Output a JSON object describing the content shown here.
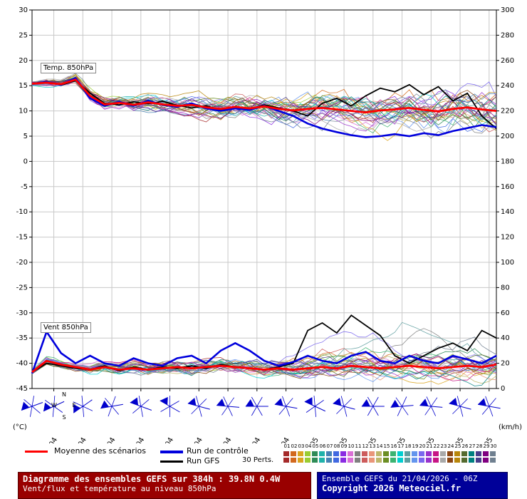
{
  "chart_data": {
    "type": "line",
    "title": "Diagramme des ensembles GEFS sur 384h : 39.8N 0.4W",
    "subtitle": "Vent/flux et température au niveau 850hPa",
    "temp_label": "Temp. 850hPa",
    "wind_label": "Vent 850hPa",
    "left_axis": {
      "unit": "(°C)",
      "min": -45,
      "max": 30,
      "step": 5
    },
    "right_axis": {
      "unit": "(km/h)",
      "min": 0,
      "max": 300,
      "step": 20
    },
    "x_labels": [
      "22/04",
      "23/04",
      "24/04",
      "25/04",
      "26/04",
      "27/04",
      "28/04",
      "29/04",
      "30/04",
      "01/05",
      "02/05",
      "03/05",
      "04/05",
      "05/05",
      "06/05",
      "07/05"
    ],
    "forecast_hours_total": 384,
    "hours": [
      0,
      12,
      24,
      36,
      48,
      60,
      72,
      84,
      96,
      108,
      120,
      132,
      144,
      156,
      168,
      180,
      192,
      204,
      216,
      228,
      240,
      252,
      264,
      276,
      288,
      300,
      312,
      324,
      336,
      348,
      360,
      372,
      384
    ],
    "series": {
      "mean_temp": {
        "name": "Moyenne des scénarios (temp)",
        "color": "#ff0000",
        "values": [
          15.4,
          15.6,
          15.3,
          16.2,
          13.0,
          11.3,
          11.6,
          11.2,
          11.7,
          11.3,
          11.0,
          11.2,
          10.7,
          10.4,
          10.8,
          10.5,
          10.9,
          10.4,
          10.1,
          10.4,
          10.6,
          10.3,
          10.0,
          9.7,
          10.1,
          10.3,
          10.6,
          10.2,
          9.9,
          10.4,
          10.7,
          10.3,
          10.0
        ]
      },
      "control_temp": {
        "name": "Run de contrôle (temp)",
        "color": "#0000dd",
        "values": [
          15.4,
          15.7,
          15.2,
          16.5,
          12.5,
          11.0,
          11.8,
          11.0,
          12.0,
          11.2,
          10.8,
          11.5,
          10.5,
          10.0,
          10.5,
          10.2,
          11.0,
          10.0,
          9.0,
          7.5,
          6.5,
          5.8,
          5.2,
          4.8,
          5.0,
          5.4,
          5.0,
          5.6,
          5.2,
          6.0,
          6.6,
          7.2,
          6.8
        ]
      },
      "gfs_temp": {
        "name": "Run GFS (temp)",
        "color": "#000000",
        "values": [
          15.4,
          15.8,
          15.1,
          16.0,
          13.5,
          11.5,
          11.2,
          11.8,
          11.4,
          11.9,
          11.1,
          10.6,
          11.0,
          10.2,
          10.9,
          10.3,
          11.2,
          10.6,
          10.0,
          9.0,
          11.5,
          12.5,
          11.0,
          13.0,
          14.5,
          13.8,
          15.2,
          13.2,
          14.8,
          12.0,
          13.5,
          9.0,
          6.5
        ]
      },
      "mean_wind": {
        "name": "Moyenne des scénarios (vent km/h)",
        "color": "#ff0000",
        "values": [
          13,
          22,
          19,
          17,
          15,
          17,
          15,
          16,
          15,
          16,
          17,
          16,
          17,
          18,
          17,
          16,
          15,
          16,
          15,
          16,
          17,
          16,
          18,
          17,
          16,
          17,
          18,
          17,
          16,
          17,
          18,
          17,
          19
        ]
      },
      "control_wind": {
        "name": "Run de contrôle (vent km/h)",
        "color": "#0000dd",
        "values": [
          12,
          45,
          28,
          20,
          26,
          20,
          18,
          24,
          20,
          18,
          24,
          26,
          20,
          30,
          36,
          30,
          22,
          18,
          21,
          26,
          22,
          20,
          26,
          29,
          22,
          20,
          26,
          22,
          20,
          26,
          23,
          20,
          26
        ]
      },
      "gfs_wind": {
        "name": "Run GFS (vent km/h)",
        "color": "#000000",
        "values": [
          13,
          20,
          18,
          16,
          15,
          18,
          14,
          17,
          15,
          17,
          16,
          18,
          16,
          19,
          17,
          16,
          15,
          17,
          20,
          46,
          52,
          44,
          58,
          50,
          42,
          26,
          20,
          26,
          32,
          36,
          30,
          46,
          40
        ]
      }
    },
    "members": {
      "count": 30,
      "colors": [
        "#a52a2a",
        "#d2691e",
        "#daa520",
        "#9acd32",
        "#2e8b57",
        "#20b2aa",
        "#4682b4",
        "#4169e1",
        "#8a2be2",
        "#da70d6",
        "#808080",
        "#cd5c5c",
        "#e9967a",
        "#bdb76b",
        "#6b8e23",
        "#3cb371",
        "#00ced1",
        "#5f9ea0",
        "#6495ed",
        "#7b68ee",
        "#9932cc",
        "#c71585",
        "#a9a9a9",
        "#8b4513",
        "#b8860b",
        "#556b2f",
        "#008080",
        "#483d8b",
        "#800080",
        "#708090"
      ]
    },
    "wind_barbs": {
      "color": "#0000cc",
      "compass": [
        "N",
        "E",
        "S",
        "W"
      ],
      "directions_deg": [
        250,
        245,
        235,
        260,
        290,
        300,
        285,
        275,
        270,
        280,
        295,
        285,
        270,
        265,
        275,
        285,
        280
      ]
    },
    "grid": true,
    "legend_position": "bottom"
  },
  "legend": {
    "mean_label": "Moyenne des scénarios",
    "control_label": "Run de contrôle",
    "gfs_label": "Run GFS",
    "perts_label": "30 Perts.",
    "pert_numbers": [
      "01",
      "02",
      "03",
      "04",
      "05",
      "06",
      "07",
      "08",
      "09",
      "10",
      "11",
      "12",
      "13",
      "14",
      "15",
      "16",
      "17",
      "18",
      "19",
      "20",
      "21",
      "22",
      "23",
      "24",
      "25",
      "26",
      "27",
      "28",
      "29",
      "30"
    ]
  },
  "footer": {
    "title": "Diagramme des ensembles GEFS sur 384h : 39.8N 0.4W",
    "subtitle": "Vent/flux et température au niveau 850hPa",
    "run_info": "Ensemble GEFS du 21/04/2026 - 06Z",
    "copyright": "Copyright 2026 Meteociel.fr"
  },
  "colors": {
    "mean": "#ff0000",
    "control": "#0000dd",
    "gfs": "#000000",
    "barb": "#0000cc",
    "gridline": "#c8c8c8",
    "footer_left_bg": "#990000",
    "footer_right_bg": "#000099"
  }
}
